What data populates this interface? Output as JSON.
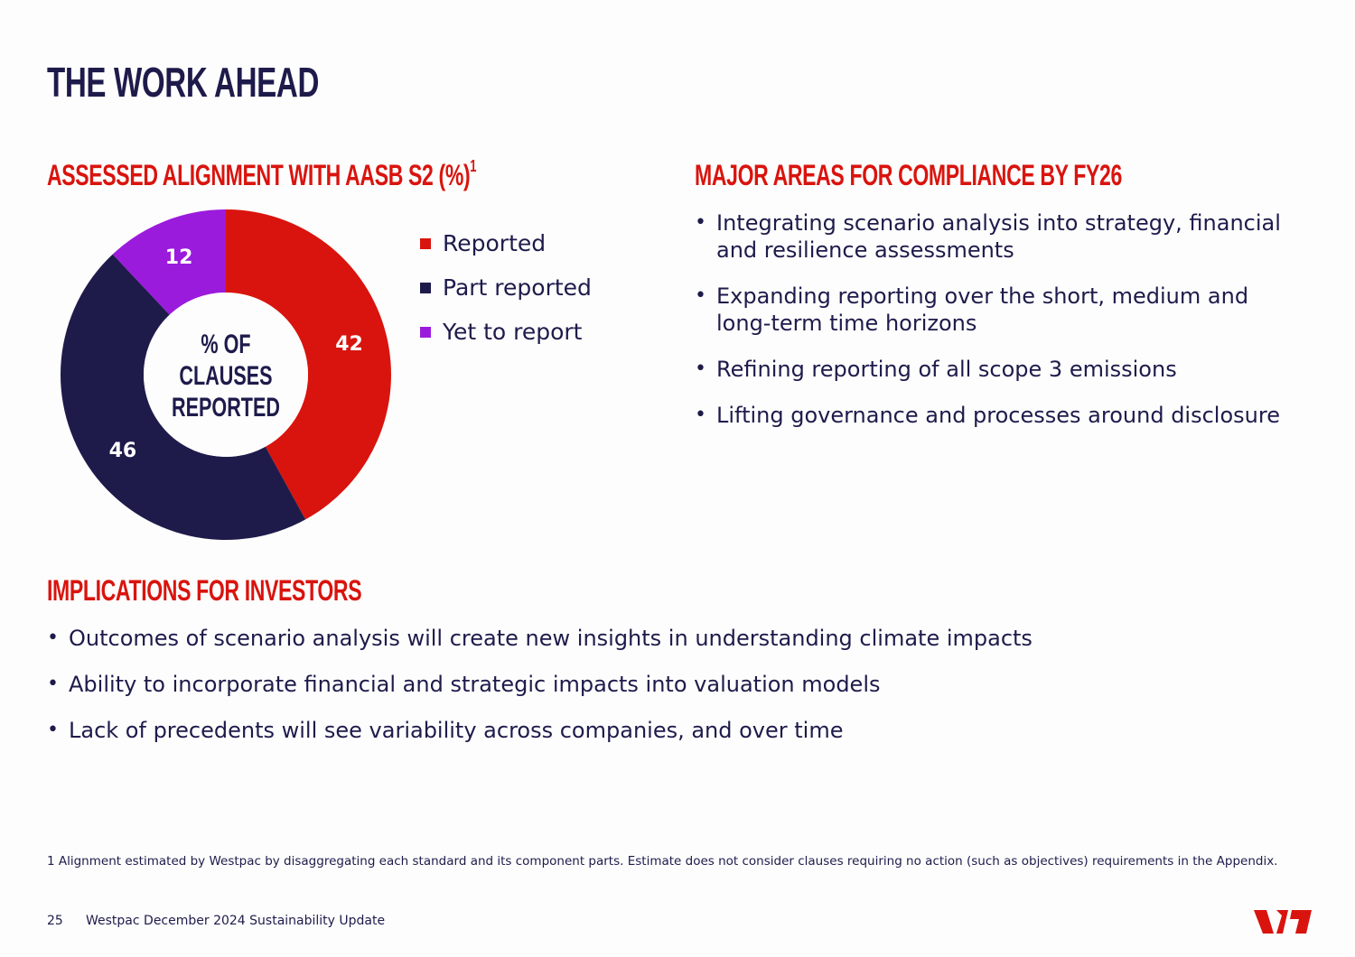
{
  "page": {
    "title": "THE WORK AHEAD"
  },
  "chart_section": {
    "title": "ASSESSED ALIGNMENT WITH AASB S2 (%)",
    "title_superscript": "1",
    "center_label_lines": [
      "% OF",
      "CLAUSES",
      "REPORTED"
    ]
  },
  "chart_data": {
    "type": "pie",
    "variant": "donut",
    "categories": [
      "Reported",
      "Part reported",
      "Yet to report"
    ],
    "values": [
      42,
      46,
      12
    ],
    "colors": [
      "#d9140e",
      "#1e1b4b",
      "#9b1bdc"
    ],
    "data_labels": [
      "42",
      "46",
      "12"
    ],
    "legend_position": "right"
  },
  "areas": {
    "title": "MAJOR AREAS FOR COMPLIANCE BY FY26",
    "items": [
      "Integrating scenario analysis into strategy, financial and resilience assessments",
      "Expanding reporting over the short, medium and long-term time horizons",
      "Refining reporting of all scope 3 emissions",
      "Lifting governance and processes around disclosure"
    ]
  },
  "investors": {
    "title": "IMPLICATIONS FOR INVESTORS",
    "items": [
      "Outcomes of scenario analysis will create new insights in understanding climate impacts",
      "Ability to incorporate financial and strategic impacts into valuation models",
      "Lack of precedents will see variability across companies, and over time"
    ]
  },
  "footnote": "1 Alignment estimated by Westpac by disaggregating each standard and its component parts. Estimate does not consider clauses requiring no action (such as objectives) requirements in the Appendix.",
  "footer": {
    "page_number": "25",
    "doc_title": "Westpac December 2024 Sustainability Update",
    "logo_icon": "westpac-w-logo",
    "brand_color": "#d9140e"
  }
}
